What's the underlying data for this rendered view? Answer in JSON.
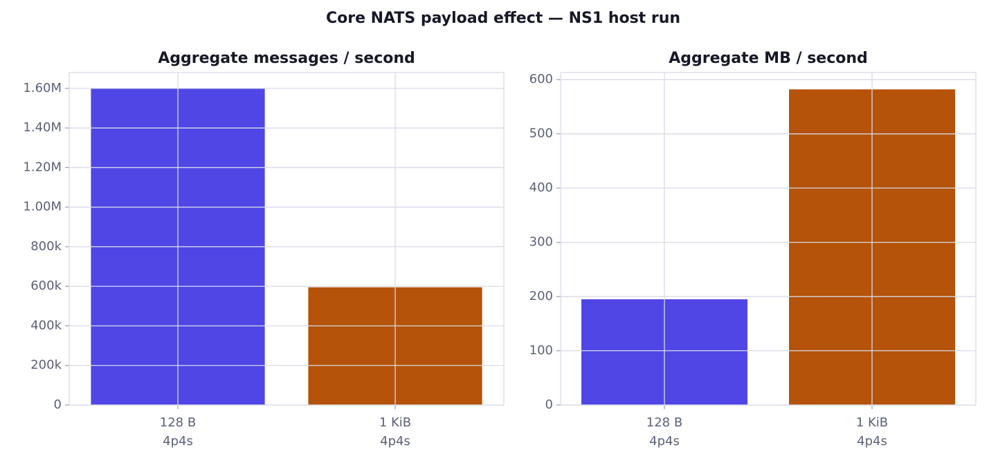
{
  "title": "Core NATS payload effect — NS1 host run",
  "chart_data": [
    {
      "type": "bar",
      "title": "Aggregate messages / second",
      "categories": [
        [
          "128 B",
          "4p4s"
        ],
        [
          "1 KiB",
          "4p4s"
        ]
      ],
      "values": [
        1600000,
        595000
      ],
      "colors": [
        "#4f46e5",
        "#b45309"
      ],
      "ylim": [
        0,
        1680000
      ],
      "yticks": [
        0,
        {
          "value": 200000,
          "label": "200k"
        },
        {
          "value": 400000,
          "label": "400k"
        },
        {
          "value": 600000,
          "label": "600k"
        },
        {
          "value": 800000,
          "label": "800k"
        },
        {
          "value": 1000000,
          "label": "1.00M"
        },
        {
          "value": 1200000,
          "label": "1.20M"
        },
        {
          "value": 1400000,
          "label": "1.40M"
        },
        {
          "value": 1600000,
          "label": "1.60M"
        }
      ],
      "grid": true
    },
    {
      "type": "bar",
      "title": "Aggregate MB / second",
      "categories": [
        [
          "128 B",
          "4p4s"
        ],
        [
          "1 KiB",
          "4p4s"
        ]
      ],
      "values": [
        195,
        582
      ],
      "colors": [
        "#4f46e5",
        "#b45309"
      ],
      "ylim": [
        0,
        613
      ],
      "yticks": [
        0,
        100,
        200,
        300,
        400,
        500,
        600
      ],
      "grid": true
    }
  ]
}
